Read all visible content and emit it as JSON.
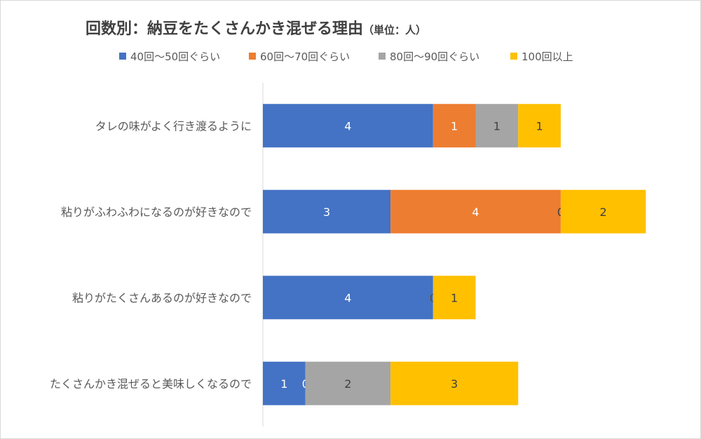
{
  "chart_data": {
    "type": "bar",
    "orientation": "horizontal",
    "stacked": true,
    "title": "回数別：納豆をたくさんかき混ぜる理由",
    "title_unit": "（単位：人）",
    "categories": [
      "タレの味がよく行き渡るように",
      "粘りがふわふわになるのが好きなので",
      "粘りがたくさんあるのが好きなので",
      "たくさんかき混ぜると美味しくなるので"
    ],
    "series": [
      {
        "name": "40回〜50回ぐらい",
        "color": "#4472c4",
        "label_color": "#ffffff",
        "values": [
          4,
          3,
          4,
          1
        ]
      },
      {
        "name": "60回〜70回ぐらい",
        "color": "#ed7d31",
        "label_color": "#ffffff",
        "values": [
          1,
          4,
          0,
          0
        ]
      },
      {
        "name": "80回〜90回ぐらい",
        "color": "#a5a5a5",
        "label_color": "#404040",
        "values": [
          1,
          0,
          0,
          2
        ]
      },
      {
        "name": "100回以上",
        "color": "#ffc000",
        "label_color": "#404040",
        "values": [
          1,
          2,
          1,
          3
        ]
      }
    ],
    "xlim": [
      0,
      9
    ],
    "grid": false,
    "data_labels": true,
    "legend_position": "top"
  }
}
